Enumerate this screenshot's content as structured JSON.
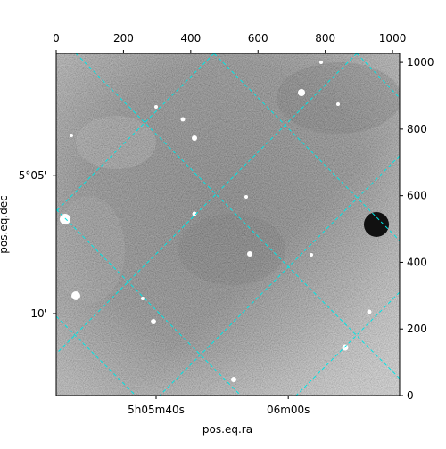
{
  "chart_data": {
    "type": "image",
    "xlabel": "pos.eq.ra",
    "ylabel": "pos.eq.dec",
    "xlim": [
      0,
      1021
    ],
    "ylim": [
      0,
      1027
    ],
    "xticks": [
      0,
      200,
      400,
      600,
      800,
      1000
    ],
    "yticks": [
      0,
      200,
      400,
      600,
      800,
      1000
    ],
    "ra_ticks": [
      {
        "value": 297,
        "label": "5h05m40s"
      },
      {
        "value": 690,
        "label": "06m00s"
      }
    ],
    "dec_ticks": [
      {
        "value": 660,
        "label": "5°05'"
      },
      {
        "value": 246,
        "label": "10'"
      }
    ],
    "grid_color": "#00e5e5"
  }
}
